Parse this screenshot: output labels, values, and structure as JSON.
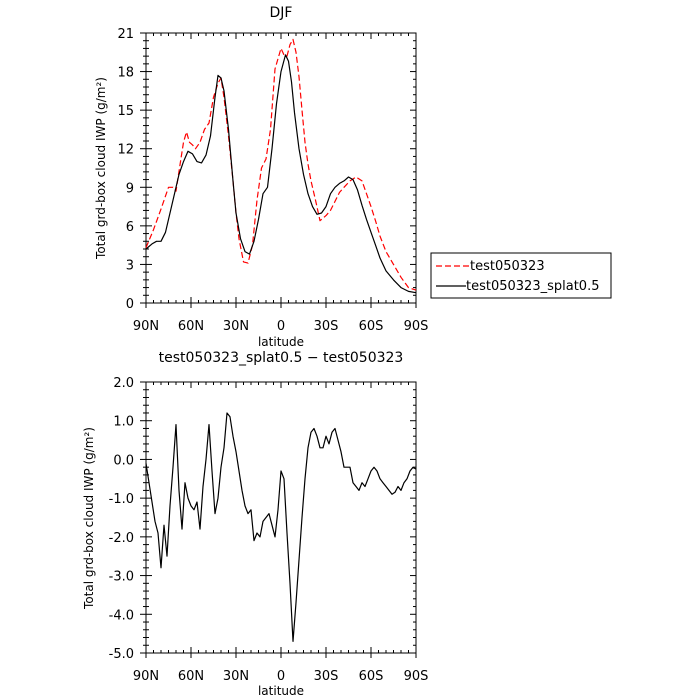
{
  "chart_data": [
    {
      "type": "line",
      "title": "DJF",
      "xlabel": "latitude",
      "ylabel": "Total grd-box cloud IWP (g/m²)",
      "x_ticks": [
        90,
        60,
        30,
        0,
        -30,
        -60,
        -90
      ],
      "x_tick_labels": [
        "90N",
        "60N",
        "30N",
        "0",
        "30S",
        "60S",
        "90S"
      ],
      "xlim": [
        90,
        -90
      ],
      "ylim": [
        0,
        21
      ],
      "y_ticks": [
        0,
        3,
        6,
        9,
        12,
        15,
        18,
        21
      ],
      "y_tick_labels": [
        "0",
        "3",
        "6",
        "9",
        "12",
        "15",
        "18",
        "21"
      ],
      "legend_position": "right",
      "series": [
        {
          "name": "test050323",
          "color": "#ff0000",
          "dash": "dashed",
          "x": [
            90,
            85,
            80,
            75,
            72,
            70,
            67,
            65,
            63,
            61,
            59,
            57,
            54,
            51,
            48,
            45,
            42,
            40,
            38,
            35,
            32,
            30,
            28,
            25,
            22,
            19,
            16,
            13,
            10,
            7,
            4,
            0,
            -2,
            -4,
            -6,
            -8,
            -10,
            -12,
            -14,
            -16,
            -18,
            -20,
            -23,
            -26,
            -30,
            -33,
            -36,
            -39,
            -42,
            -46,
            -50,
            -54,
            -57,
            -60,
            -63,
            -66,
            -70,
            -75,
            -80,
            -85,
            -90
          ],
          "y": [
            4.3,
            5.7,
            7.3,
            9.0,
            9.0,
            8.7,
            11.0,
            12.5,
            13.3,
            12.5,
            12.3,
            12.0,
            12.5,
            13.5,
            14.0,
            16.0,
            17.1,
            17.5,
            16.0,
            13.0,
            9.5,
            7.0,
            5.0,
            3.2,
            3.1,
            4.5,
            8.0,
            10.5,
            11.2,
            13.5,
            18.2,
            19.8,
            19.3,
            19.2,
            20.1,
            20.5,
            19.5,
            17.6,
            15.0,
            12.5,
            10.8,
            9.5,
            8.0,
            6.4,
            6.8,
            7.2,
            7.9,
            8.6,
            9.0,
            9.5,
            9.8,
            9.5,
            8.5,
            7.5,
            6.4,
            5.2,
            4.0,
            3.0,
            2.0,
            1.2,
            1.0
          ]
        },
        {
          "name": "test050323_splat0.5",
          "color": "#000000",
          "dash": "solid",
          "x": [
            90,
            86,
            83,
            80,
            77,
            74,
            71,
            68,
            65,
            62,
            59,
            56,
            53,
            50,
            47,
            44,
            42,
            40,
            38,
            35,
            32,
            30,
            27,
            24,
            21,
            18,
            15,
            12,
            9,
            6,
            3,
            0,
            -3,
            -5,
            -7,
            -9,
            -12,
            -15,
            -18,
            -21,
            -24,
            -27,
            -30,
            -33,
            -36,
            -39,
            -42,
            -45,
            -48,
            -51,
            -54,
            -57,
            -60,
            -63,
            -66,
            -70,
            -75,
            -80,
            -85,
            -90
          ],
          "y": [
            4.2,
            4.6,
            4.8,
            4.8,
            5.5,
            7.0,
            8.5,
            10.0,
            11.0,
            11.8,
            11.6,
            11.0,
            10.9,
            11.5,
            13.0,
            16.0,
            17.7,
            17.5,
            16.5,
            13.5,
            9.5,
            7.0,
            5.0,
            4.0,
            3.8,
            4.8,
            6.5,
            8.5,
            9.0,
            12.0,
            15.5,
            18.0,
            19.3,
            18.8,
            17.2,
            14.8,
            12.0,
            10.0,
            8.5,
            7.5,
            6.9,
            7.0,
            7.5,
            8.5,
            9.0,
            9.3,
            9.5,
            9.8,
            9.6,
            8.8,
            7.6,
            6.5,
            5.5,
            4.5,
            3.5,
            2.5,
            1.8,
            1.2,
            0.9,
            0.8
          ]
        }
      ]
    },
    {
      "type": "line",
      "title": "test050323_splat0.5 − test050323",
      "xlabel": "latitude",
      "ylabel": "Total grd-box cloud IWP (g/m²)",
      "x_ticks": [
        90,
        60,
        30,
        0,
        -30,
        -60,
        -90
      ],
      "x_tick_labels": [
        "90N",
        "60N",
        "30N",
        "0",
        "30S",
        "60S",
        "90S"
      ],
      "xlim": [
        90,
        -90
      ],
      "ylim": [
        -5,
        2
      ],
      "y_ticks": [
        -5,
        -4,
        -3,
        -2,
        -1,
        0,
        1,
        2
      ],
      "y_tick_labels": [
        "-5.0",
        "-4.0",
        "-3.0",
        "-2.0",
        "-1.0",
        "0.0",
        "1.0",
        "2.0"
      ],
      "series": [
        {
          "color": "#000000",
          "dash": "solid",
          "x": [
            90,
            88,
            86,
            84,
            82,
            80,
            78,
            76,
            74,
            72,
            70,
            68,
            66,
            64,
            62,
            60,
            58,
            56,
            54,
            52,
            50,
            48,
            46,
            44,
            42,
            40,
            38,
            36,
            34,
            32,
            30,
            28,
            26,
            24,
            22,
            20,
            18,
            16,
            14,
            12,
            10,
            8,
            6,
            4,
            2,
            0,
            -2,
            -4,
            -6,
            -8,
            -10,
            -12,
            -14,
            -16,
            -18,
            -20,
            -22,
            -24,
            -26,
            -28,
            -30,
            -32,
            -34,
            -36,
            -38,
            -40,
            -42,
            -44,
            -46,
            -48,
            -50,
            -52,
            -54,
            -56,
            -58,
            -60,
            -62,
            -64,
            -66,
            -68,
            -70,
            -72,
            -74,
            -76,
            -78,
            -80,
            -82,
            -84,
            -86,
            -88,
            -90
          ],
          "y": [
            -0.1,
            -0.6,
            -1.1,
            -1.6,
            -1.9,
            -2.8,
            -1.7,
            -2.5,
            -1.2,
            -0.2,
            0.9,
            -0.8,
            -1.8,
            -0.6,
            -1.0,
            -1.2,
            -1.3,
            -1.1,
            -1.8,
            -0.7,
            0.0,
            0.9,
            -0.3,
            -1.4,
            -1.0,
            -0.2,
            0.3,
            1.2,
            1.1,
            0.6,
            0.2,
            -0.3,
            -0.8,
            -1.2,
            -1.4,
            -1.3,
            -2.1,
            -1.9,
            -2.0,
            -1.6,
            -1.5,
            -1.4,
            -1.7,
            -2.0,
            -1.3,
            -0.3,
            -0.5,
            -1.9,
            -3.2,
            -4.7,
            -3.7,
            -2.6,
            -1.5,
            -0.5,
            0.3,
            0.7,
            0.8,
            0.6,
            0.3,
            0.3,
            0.6,
            0.4,
            0.7,
            0.8,
            0.5,
            0.2,
            -0.2,
            -0.2,
            -0.2,
            -0.6,
            -0.7,
            -0.8,
            -0.6,
            -0.7,
            -0.5,
            -0.3,
            -0.2,
            -0.3,
            -0.5,
            -0.6,
            -0.7,
            -0.8,
            -0.9,
            -0.85,
            -0.7,
            -0.8,
            -0.6,
            -0.5,
            -0.3,
            -0.2,
            -0.25
          ]
        }
      ]
    }
  ]
}
